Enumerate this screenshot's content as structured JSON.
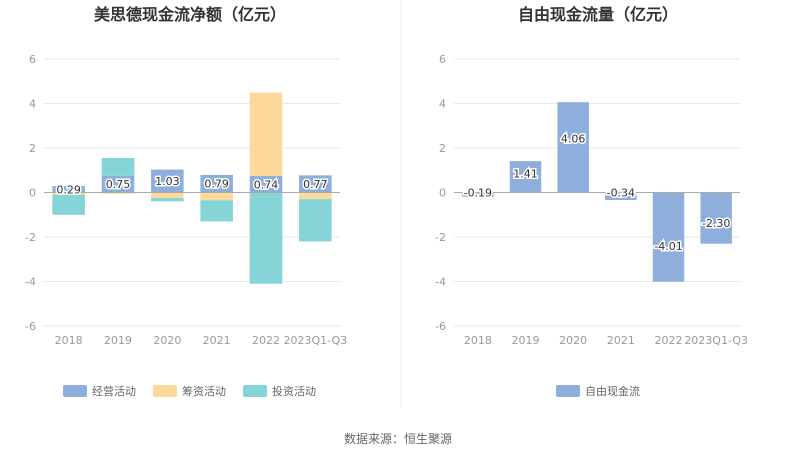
{
  "chart_data": [
    {
      "type": "bar",
      "stacked": true,
      "title": "美思德现金流净额（亿元）",
      "categories": [
        "2018",
        "2019",
        "2020",
        "2021",
        "2022",
        "2023Q1-Q3"
      ],
      "ylim": [
        -6,
        6
      ],
      "yticks": [
        6,
        4,
        2,
        0,
        -2,
        -4,
        -6
      ],
      "grid": true,
      "legend_position": "bottom",
      "series": [
        {
          "name": "经营活动",
          "color": "#8eaedc",
          "values": [
            0.29,
            0.75,
            1.03,
            0.79,
            0.74,
            0.77
          ]
        },
        {
          "name": "筹资活动",
          "color": "#fdd99b",
          "values": [
            -0.1,
            -0.05,
            -0.25,
            -0.35,
            3.75,
            -0.3
          ]
        },
        {
          "name": "投资活动",
          "color": "#85d4d8",
          "values": [
            -0.9,
            0.8,
            -0.15,
            -0.95,
            -4.1,
            -1.9
          ]
        }
      ],
      "data_labels": [
        "0.29",
        "0.75",
        "1.03",
        "0.79",
        "0.74",
        "0.77"
      ]
    },
    {
      "type": "bar",
      "title": "自由现金流量（亿元）",
      "categories": [
        "2018",
        "2019",
        "2020",
        "2021",
        "2022",
        "2023Q1-Q3"
      ],
      "ylim": [
        -6,
        6
      ],
      "yticks": [
        6,
        4,
        2,
        0,
        -2,
        -4,
        -6
      ],
      "grid": true,
      "legend_position": "bottom",
      "series": [
        {
          "name": "自由现金流",
          "color": "#8eaedc",
          "values": [
            -0.19,
            1.41,
            4.06,
            -0.34,
            -4.01,
            -2.3
          ]
        }
      ],
      "data_labels": [
        "-0.19",
        "1.41",
        "4.06",
        "-0.34",
        "-4.01",
        "-2.30"
      ]
    }
  ],
  "source": "数据来源：恒生聚源"
}
